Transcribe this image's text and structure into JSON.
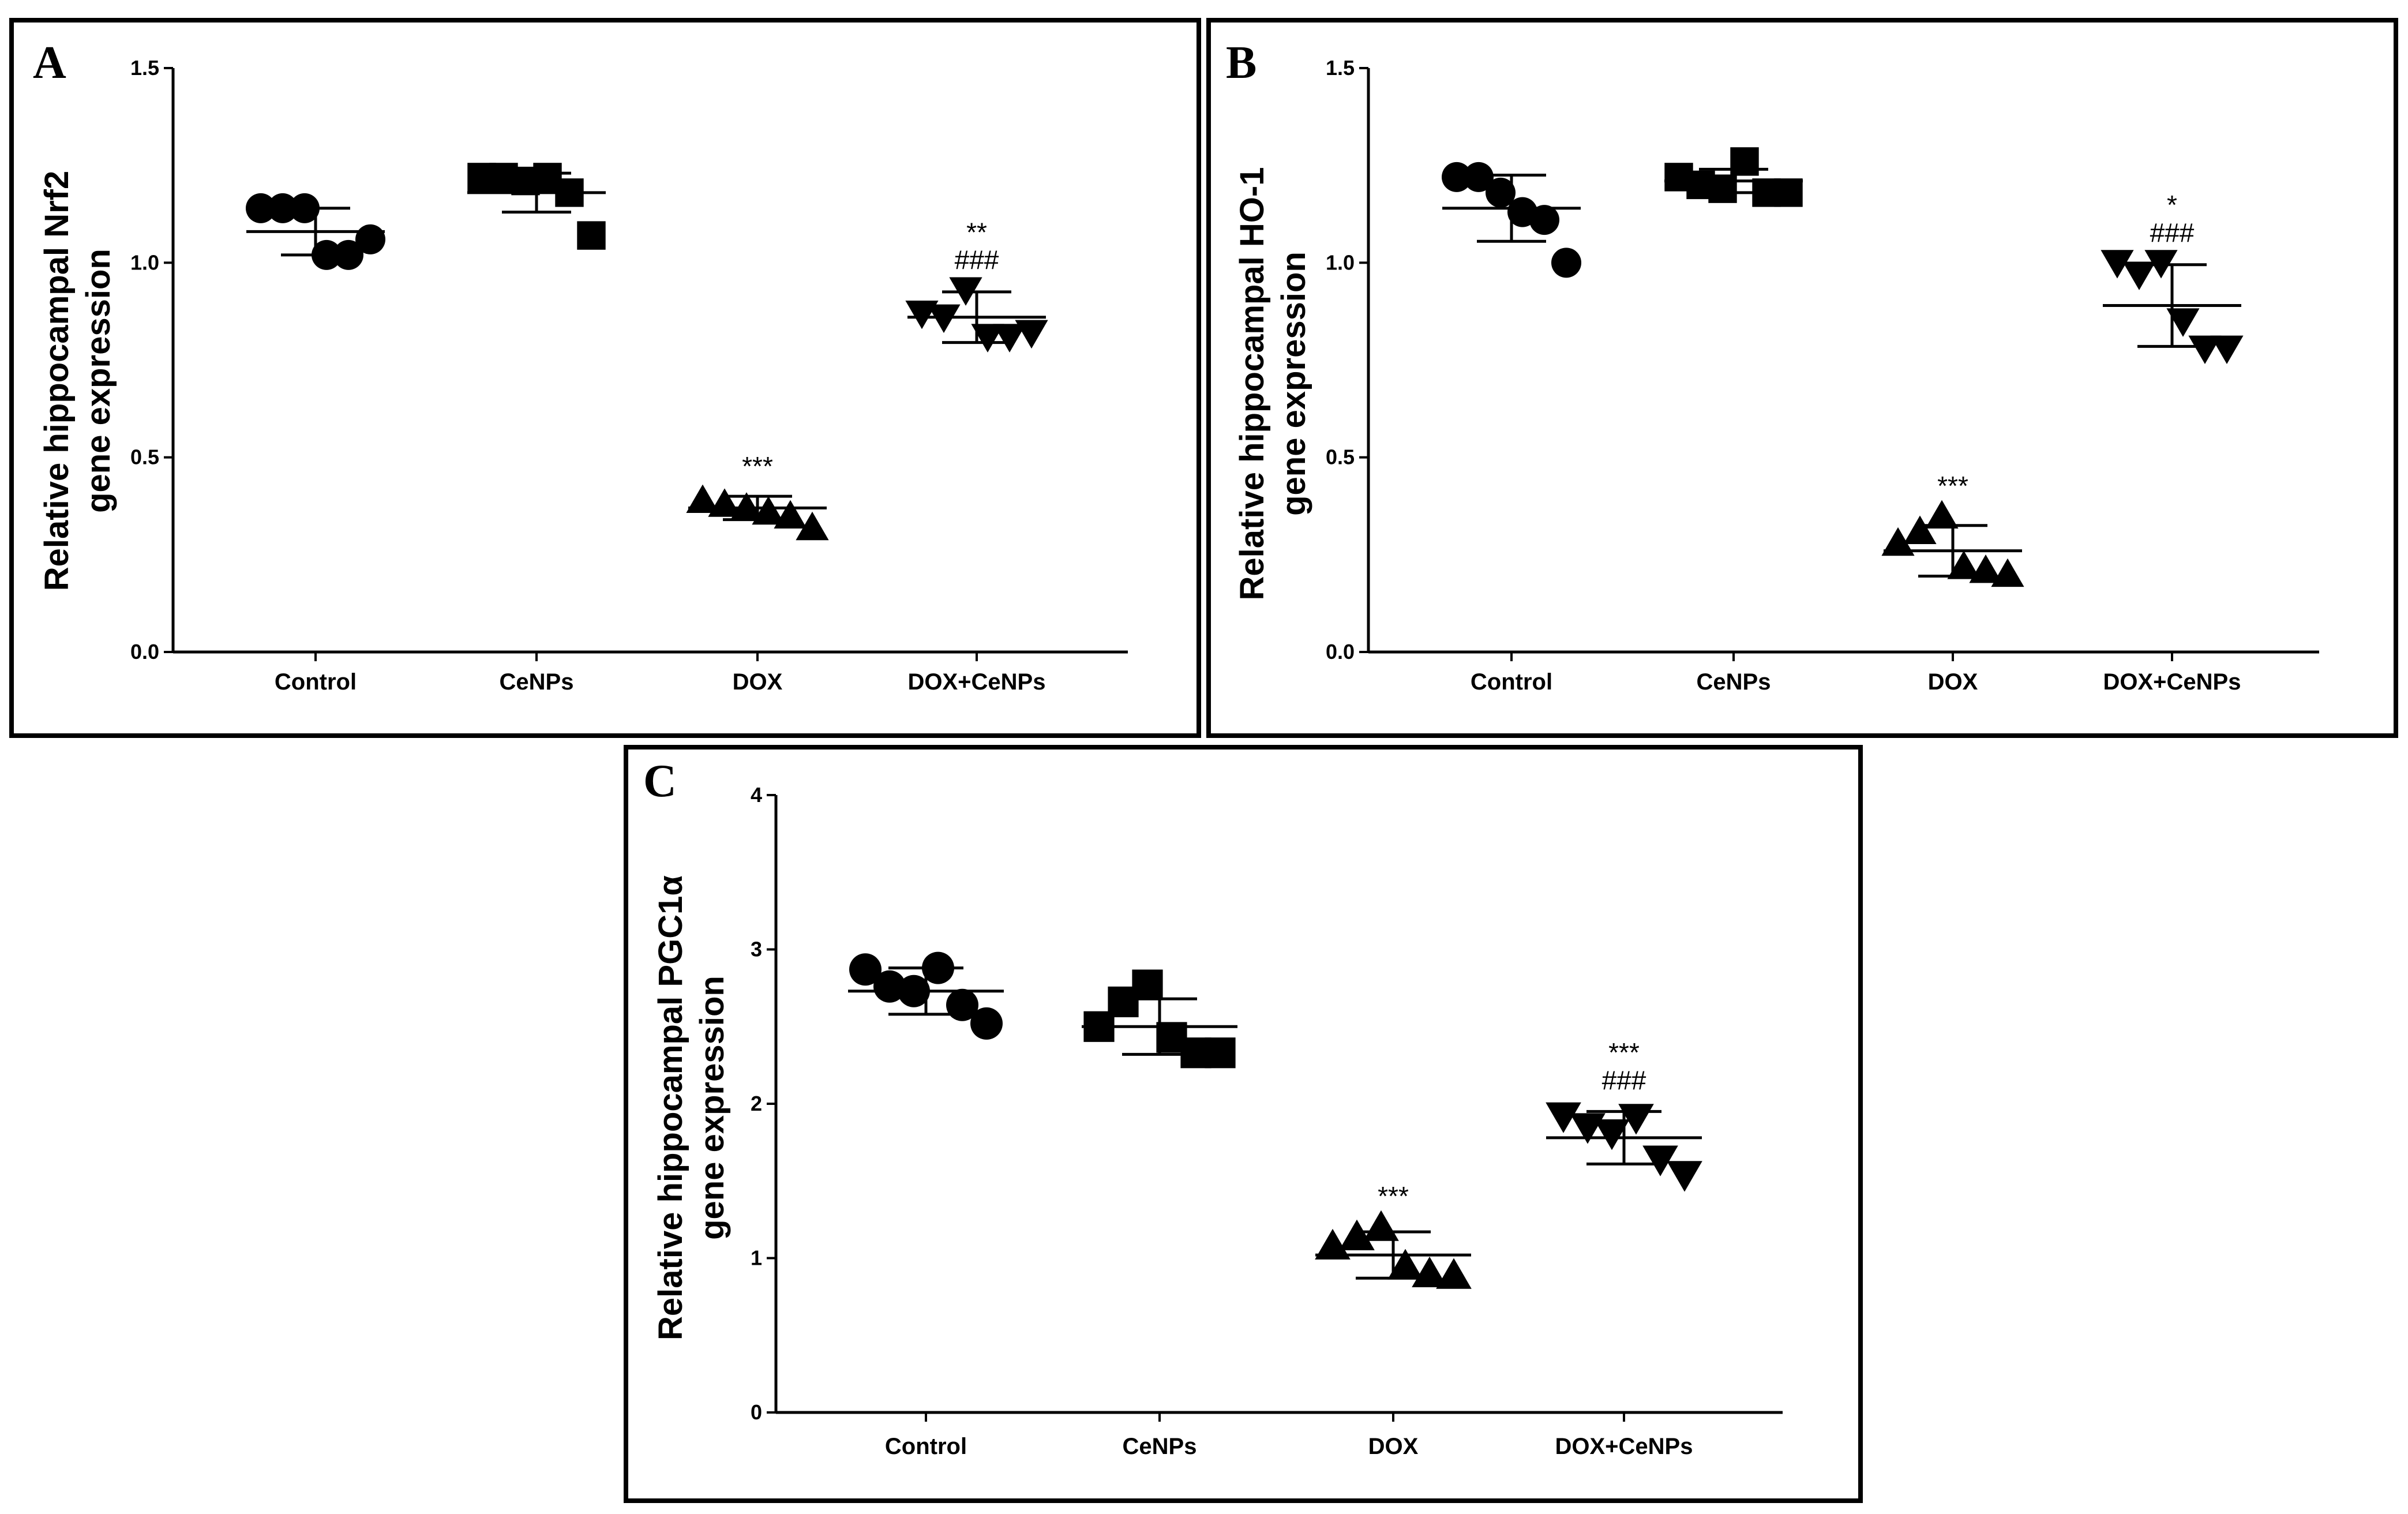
{
  "figure": {
    "background": "#ffffff",
    "ink": "#000000"
  },
  "chart_data": [
    {
      "panel": "A",
      "type": "scatter",
      "title": "",
      "xlabel": "",
      "ylabel_lines": [
        "Relative hippocampal Nrf2",
        "gene expression"
      ],
      "categories": [
        "Control",
        "CeNPs",
        "DOX",
        "DOX+CeNPs"
      ],
      "markers": [
        "circle",
        "square",
        "triangle-up",
        "triangle-down"
      ],
      "ylim": [
        0,
        1.5
      ],
      "yticks": [
        0,
        0.5,
        1.0,
        1.5
      ],
      "ytick_labels": [
        "0.0",
        "0.5",
        "1.0",
        "1.5"
      ],
      "points": [
        [
          1.14,
          1.14,
          1.14,
          1.02,
          1.02,
          1.06
        ],
        [
          1.22,
          1.22,
          1.21,
          1.22,
          1.18,
          1.07
        ],
        [
          0.39,
          0.38,
          0.37,
          0.36,
          0.35,
          0.32
        ],
        [
          0.87,
          0.86,
          0.93,
          0.81,
          0.81,
          0.82
        ]
      ],
      "mean": [
        1.08,
        1.18,
        0.37,
        0.86
      ],
      "sd": [
        0.06,
        0.05,
        0.03,
        0.065
      ],
      "annotations": [
        [],
        [],
        [
          "***"
        ],
        [
          "**",
          "###"
        ]
      ]
    },
    {
      "panel": "B",
      "type": "scatter",
      "title": "",
      "xlabel": "",
      "ylabel_lines": [
        "Relative hippocampal HO-1",
        "gene expression"
      ],
      "categories": [
        "Control",
        "CeNPs",
        "DOX",
        "DOX+CeNPs"
      ],
      "markers": [
        "circle",
        "square",
        "triangle-up",
        "triangle-down"
      ],
      "ylim": [
        0,
        1.5
      ],
      "yticks": [
        0,
        0.5,
        1.0,
        1.5
      ],
      "ytick_labels": [
        "0.0",
        "0.5",
        "1.0",
        "1.5"
      ],
      "points": [
        [
          1.22,
          1.22,
          1.18,
          1.13,
          1.11,
          1.0
        ],
        [
          1.22,
          1.2,
          1.19,
          1.26,
          1.18,
          1.18
        ],
        [
          0.28,
          0.31,
          0.35,
          0.22,
          0.21,
          0.2
        ],
        [
          1.0,
          0.97,
          1.0,
          0.85,
          0.78,
          0.78
        ]
      ],
      "mean": [
        1.14,
        1.21,
        0.26,
        0.89
      ],
      "sd": [
        0.085,
        0.03,
        0.065,
        0.105
      ],
      "annotations": [
        [],
        [],
        [
          "***"
        ],
        [
          "*",
          "###"
        ]
      ]
    },
    {
      "panel": "C",
      "type": "scatter",
      "title": "",
      "xlabel": "",
      "ylabel_lines": [
        "Relative hippocampal PGC1α",
        "gene expression"
      ],
      "categories": [
        "Control",
        "CeNPs",
        "DOX",
        "DOX+CeNPs"
      ],
      "markers": [
        "circle",
        "square",
        "triangle-up",
        "triangle-down"
      ],
      "ylim": [
        0,
        4
      ],
      "yticks": [
        0,
        1,
        2,
        3,
        4
      ],
      "ytick_labels": [
        "0",
        "1",
        "2",
        "3",
        "4"
      ],
      "points": [
        [
          2.87,
          2.76,
          2.73,
          2.88,
          2.64,
          2.52
        ],
        [
          2.5,
          2.66,
          2.77,
          2.43,
          2.33,
          2.33
        ],
        [
          1.08,
          1.14,
          1.2,
          0.95,
          0.9,
          0.89
        ],
        [
          1.92,
          1.85,
          1.81,
          1.91,
          1.64,
          1.54
        ]
      ],
      "mean": [
        2.73,
        2.5,
        1.02,
        1.78
      ],
      "sd": [
        0.15,
        0.18,
        0.15,
        0.17
      ],
      "annotations": [
        [],
        [],
        [
          "***"
        ],
        [
          "***",
          "###"
        ]
      ]
    }
  ]
}
